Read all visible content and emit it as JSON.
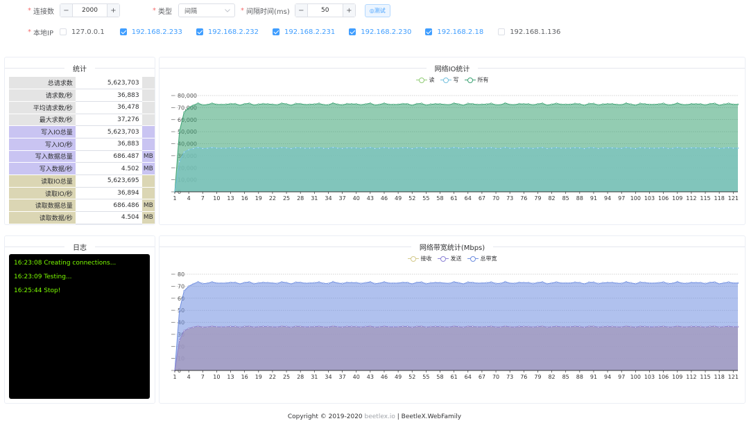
{
  "form": {
    "connections": {
      "label": "连接数",
      "value": "2000",
      "minus": "−",
      "plus": "+"
    },
    "type": {
      "label": "类型",
      "value": "间隔"
    },
    "interval": {
      "label": "间隔时间(ms)",
      "value": "50",
      "minus": "−",
      "plus": "+"
    },
    "test_button": "◎测试",
    "local_ip": {
      "label": "本地IP",
      "items": [
        {
          "ip": "127.0.0.1",
          "checked": false
        },
        {
          "ip": "192.168.2.233",
          "checked": true
        },
        {
          "ip": "192.168.2.232",
          "checked": true
        },
        {
          "ip": "192.168.2.231",
          "checked": true
        },
        {
          "ip": "192.168.2.230",
          "checked": true
        },
        {
          "ip": "192.168.2.18",
          "checked": true
        },
        {
          "ip": "192.168.1.136",
          "checked": false
        }
      ]
    }
  },
  "stats": {
    "title": "统计",
    "rows": [
      {
        "label": "总请求数",
        "value": "5,623,703",
        "unit": "",
        "group": "gray"
      },
      {
        "label": "请求数/秒",
        "value": "36,883",
        "unit": "",
        "group": "gray"
      },
      {
        "label": "平均请求数/秒",
        "value": "36,478",
        "unit": "",
        "group": "gray"
      },
      {
        "label": "最大求数/秒",
        "value": "37,276",
        "unit": "",
        "group": "gray"
      },
      {
        "label": "写入IO总量",
        "value": "5,623,703",
        "unit": "",
        "group": "purple"
      },
      {
        "label": "写入IO/秒",
        "value": "36,883",
        "unit": "",
        "group": "purple"
      },
      {
        "label": "写入数据总量",
        "value": "686.487",
        "unit": "MB",
        "group": "purple"
      },
      {
        "label": "写入数据/秒",
        "value": "4.502",
        "unit": "MB",
        "group": "purple"
      },
      {
        "label": "读取IO总量",
        "value": "5,623,695",
        "unit": "",
        "group": "tan"
      },
      {
        "label": "读取IO/秒",
        "value": "36,894",
        "unit": "",
        "group": "tan"
      },
      {
        "label": "读取数据总量",
        "value": "686.486",
        "unit": "MB",
        "group": "tan"
      },
      {
        "label": "读取数据/秒",
        "value": "4.504",
        "unit": "MB",
        "group": "tan"
      }
    ]
  },
  "log": {
    "title": "日志",
    "lines": [
      "16:23:08 Creating connections...",
      "16:23:09 Testing...",
      "16:25:44 Stop!"
    ]
  },
  "chart_data": [
    {
      "type": "area",
      "title": "网络IO统计",
      "xlabel": "",
      "ylabel": "",
      "ylim": [
        0,
        80000
      ],
      "yticks": [
        "0",
        "10,000",
        "20,000",
        "30,000",
        "40,000",
        "50,000",
        "60,000",
        "70,000",
        "80,000"
      ],
      "x": {
        "start": 1,
        "end": 122,
        "tick_step": 3
      },
      "legend_position": "top-center",
      "grid": true,
      "series": [
        {
          "name": "读",
          "color": "#91cc75",
          "ramp": [
            0,
            25000,
            33000,
            35000,
            36000
          ],
          "level": 36400,
          "jitter": 500
        },
        {
          "name": "写",
          "color": "#73c0de",
          "ramp": [
            0,
            25000,
            33000,
            35000,
            36000
          ],
          "level": 36400,
          "jitter": 500
        },
        {
          "name": "所有",
          "color": "#3ba272",
          "ramp": [
            0,
            50000,
            66000,
            70000,
            72000
          ],
          "level": 72800,
          "jitter": 900
        }
      ]
    },
    {
      "type": "area",
      "title": "网络带宽统计(Mbps)",
      "xlabel": "",
      "ylabel": "",
      "ylim": [
        0,
        80
      ],
      "yticks": [
        "0",
        "10",
        "20",
        "30",
        "40",
        "50",
        "60",
        "70",
        "80"
      ],
      "x": {
        "start": 1,
        "end": 122,
        "tick_step": 3
      },
      "legend_position": "top-center",
      "grid": true,
      "series": [
        {
          "name": "接收",
          "color": "#d4c98a",
          "ramp": [
            0,
            25,
            33,
            35,
            36
          ],
          "level": 36.4,
          "jitter": 0.5
        },
        {
          "name": "发送",
          "color": "#8c83d6",
          "ramp": [
            0,
            25,
            33,
            35,
            36
          ],
          "level": 36.4,
          "jitter": 0.5
        },
        {
          "name": "总带宽",
          "color": "#6f8ee0",
          "ramp": [
            0,
            50,
            66,
            70,
            72
          ],
          "level": 72.8,
          "jitter": 0.9
        }
      ]
    }
  ],
  "footer": {
    "prefix": "Copyright © 2019-2020 ",
    "brand": "beetlex.io",
    "suffix": " | BeetleX.WebFamily"
  }
}
